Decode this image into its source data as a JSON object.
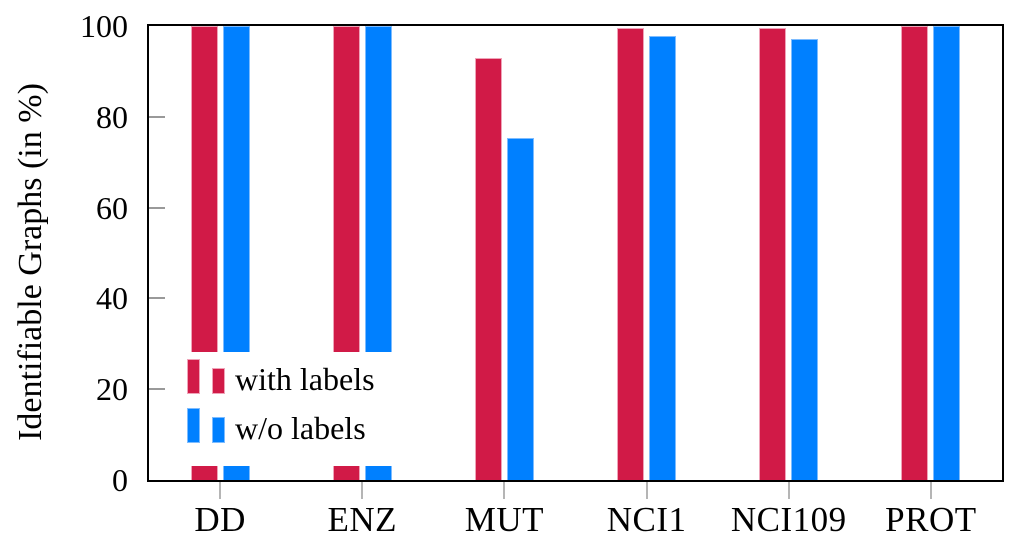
{
  "chart_data": {
    "type": "bar",
    "title": "",
    "xlabel": "",
    "ylabel": "Identifiable Graphs (in %)",
    "categories": [
      "DD",
      "ENZ",
      "MUT",
      "NCI1",
      "NCI109",
      "PROT"
    ],
    "series": [
      {
        "name": "with labels",
        "color": "#d11a47",
        "border_color": "#efa3b8",
        "values": [
          100,
          100,
          93,
          99.6,
          99.6,
          100
        ]
      },
      {
        "name": "w/o labels",
        "color": "#0080ff",
        "border_color": "#7dbcff",
        "values": [
          100,
          100,
          75.3,
          97.8,
          97.1,
          100
        ]
      }
    ],
    "y_ticks": [
      0,
      20,
      40,
      60,
      80,
      100
    ],
    "ylim": [
      0,
      100
    ],
    "grid": false,
    "legend_position": "lower left",
    "frame": "full-box"
  }
}
